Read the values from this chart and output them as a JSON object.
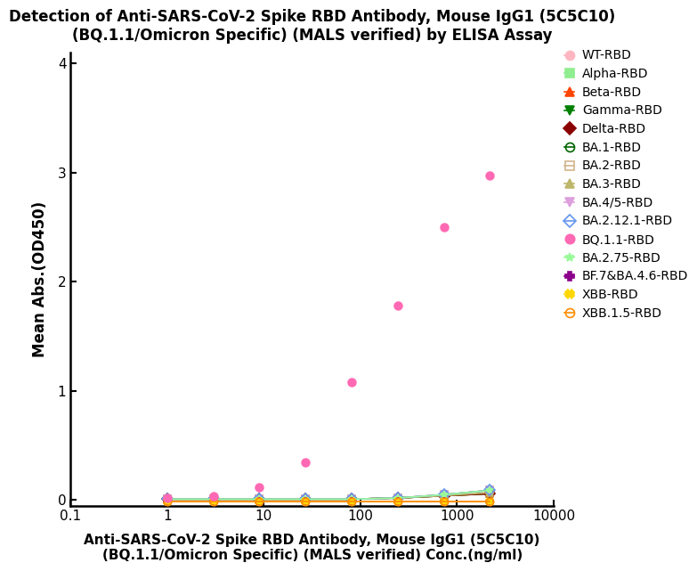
{
  "title": "Detection of Anti-SARS-CoV-2 Spike RBD Antibody, Mouse IgG1 (5C5C10)\n(BQ.1.1/Omicron Specific) (MALS verified) by ELISA Assay",
  "xlabel": "Anti-SARS-CoV-2 Spike RBD Antibody, Mouse IgG1 (5C5C10)\n(BQ.1.1/Omicron Specific) (MALS verified) Conc.(ng/ml)",
  "ylabel": "Mean Abs.(OD450)",
  "xlim": [
    0.1,
    10000
  ],
  "ylim": [
    -0.05,
    4.1
  ],
  "yticks": [
    0,
    1,
    2,
    3,
    4
  ],
  "bg_color": "#ffffff",
  "series": [
    {
      "name": "WT-RBD",
      "color": "#FFB6C1",
      "marker": "o",
      "fillstyle": "full",
      "x": [
        1,
        3,
        9,
        27,
        81,
        243,
        729,
        2187
      ],
      "y": [
        0.01,
        0.01,
        0.01,
        0.01,
        0.01,
        0.02,
        0.04,
        0.06
      ],
      "show_line": true
    },
    {
      "name": "Alpha-RBD",
      "color": "#90EE90",
      "marker": "s",
      "fillstyle": "full",
      "x": [
        1,
        3,
        9,
        27,
        81,
        243,
        729,
        2187
      ],
      "y": [
        0.01,
        0.01,
        0.01,
        0.01,
        0.01,
        0.02,
        0.04,
        0.06
      ],
      "show_line": true
    },
    {
      "name": "Beta-RBD",
      "color": "#FF4500",
      "marker": "^",
      "fillstyle": "full",
      "x": [
        1,
        3,
        9,
        27,
        81,
        243,
        729,
        2187
      ],
      "y": [
        0.01,
        0.01,
        0.01,
        0.01,
        0.01,
        0.02,
        0.04,
        0.06
      ],
      "show_line": true
    },
    {
      "name": "Gamma-RBD",
      "color": "#008000",
      "marker": "v",
      "fillstyle": "full",
      "x": [
        1,
        3,
        9,
        27,
        81,
        243,
        729,
        2187
      ],
      "y": [
        0.01,
        0.01,
        0.01,
        0.01,
        0.01,
        0.02,
        0.04,
        0.06
      ],
      "show_line": true
    },
    {
      "name": "Delta-RBD",
      "color": "#8B0000",
      "marker": "D",
      "fillstyle": "full",
      "x": [
        1,
        3,
        9,
        27,
        81,
        243,
        729,
        2187
      ],
      "y": [
        0.01,
        0.01,
        0.01,
        0.01,
        0.01,
        0.02,
        0.04,
        0.06
      ],
      "show_line": true
    },
    {
      "name": "BA.1-RBD",
      "color": "#006400",
      "marker": "o",
      "fillstyle": "none",
      "x": [
        1,
        3,
        9,
        27,
        81,
        243,
        729,
        2187
      ],
      "y": [
        0.01,
        0.01,
        0.01,
        0.01,
        0.01,
        0.02,
        0.05,
        0.09
      ],
      "show_line": true
    },
    {
      "name": "BA.2-RBD",
      "color": "#D2B48C",
      "marker": "s",
      "fillstyle": "none",
      "x": [
        1,
        3,
        9,
        27,
        81,
        243,
        729,
        2187
      ],
      "y": [
        0.01,
        0.01,
        0.01,
        0.01,
        0.01,
        0.02,
        0.05,
        0.09
      ],
      "show_line": true
    },
    {
      "name": "BA.3-RBD",
      "color": "#BDB76B",
      "marker": "^",
      "fillstyle": "full",
      "x": [
        1,
        3,
        9,
        27,
        81,
        243,
        729,
        2187
      ],
      "y": [
        0.01,
        0.01,
        0.01,
        0.01,
        0.01,
        0.02,
        0.04,
        0.07
      ],
      "show_line": true
    },
    {
      "name": "BA.4/5-RBD",
      "color": "#DDA0DD",
      "marker": "v",
      "fillstyle": "full",
      "x": [
        1,
        3,
        9,
        27,
        81,
        243,
        729,
        2187
      ],
      "y": [
        0.01,
        0.01,
        0.01,
        0.01,
        0.01,
        0.02,
        0.05,
        0.09
      ],
      "show_line": true
    },
    {
      "name": "BA.2.12.1-RBD",
      "color": "#6495ED",
      "marker": "D",
      "fillstyle": "none",
      "x": [
        1,
        3,
        9,
        27,
        81,
        243,
        729,
        2187
      ],
      "y": [
        0.01,
        0.01,
        0.01,
        0.01,
        0.01,
        0.02,
        0.05,
        0.09
      ],
      "show_line": true
    },
    {
      "name": "BQ.1.1-RBD",
      "color": "#FF69B4",
      "marker": "o",
      "fillstyle": "full",
      "x": [
        1,
        3,
        9,
        27,
        81,
        243,
        729,
        2187
      ],
      "y": [
        0.02,
        0.04,
        0.12,
        0.35,
        1.08,
        1.78,
        2.5,
        2.97
      ],
      "show_line": true,
      "sigmoid": true
    },
    {
      "name": "BA.2.75-RBD",
      "color": "#98FB98",
      "marker": "*",
      "fillstyle": "full",
      "x": [
        1,
        3,
        9,
        27,
        81,
        243,
        729,
        2187
      ],
      "y": [
        0.01,
        0.01,
        0.01,
        0.01,
        0.01,
        0.02,
        0.05,
        0.09
      ],
      "show_line": true
    },
    {
      "name": "BF.7&BA.4.6-RBD",
      "color": "#8B008B",
      "marker": "P",
      "fillstyle": "full",
      "x": [
        1,
        3,
        9,
        27,
        81,
        243,
        729,
        2187
      ],
      "y": [
        -0.01,
        -0.01,
        -0.01,
        -0.01,
        -0.01,
        -0.01,
        -0.01,
        -0.01
      ],
      "show_line": true
    },
    {
      "name": "XBB-RBD",
      "color": "#FFD700",
      "marker": "X",
      "fillstyle": "full",
      "x": [
        1,
        3,
        9,
        27,
        81,
        243,
        729,
        2187
      ],
      "y": [
        -0.01,
        -0.01,
        -0.01,
        -0.01,
        -0.01,
        -0.01,
        -0.01,
        -0.01
      ],
      "show_line": true
    },
    {
      "name": "XBB.1.5-RBD",
      "color": "#FF8C00",
      "marker": "o",
      "fillstyle": "none",
      "x": [
        1,
        3,
        9,
        27,
        81,
        243,
        729,
        2187
      ],
      "y": [
        -0.01,
        -0.01,
        -0.01,
        -0.01,
        -0.01,
        -0.01,
        -0.01,
        -0.01
      ],
      "show_line": true
    }
  ]
}
